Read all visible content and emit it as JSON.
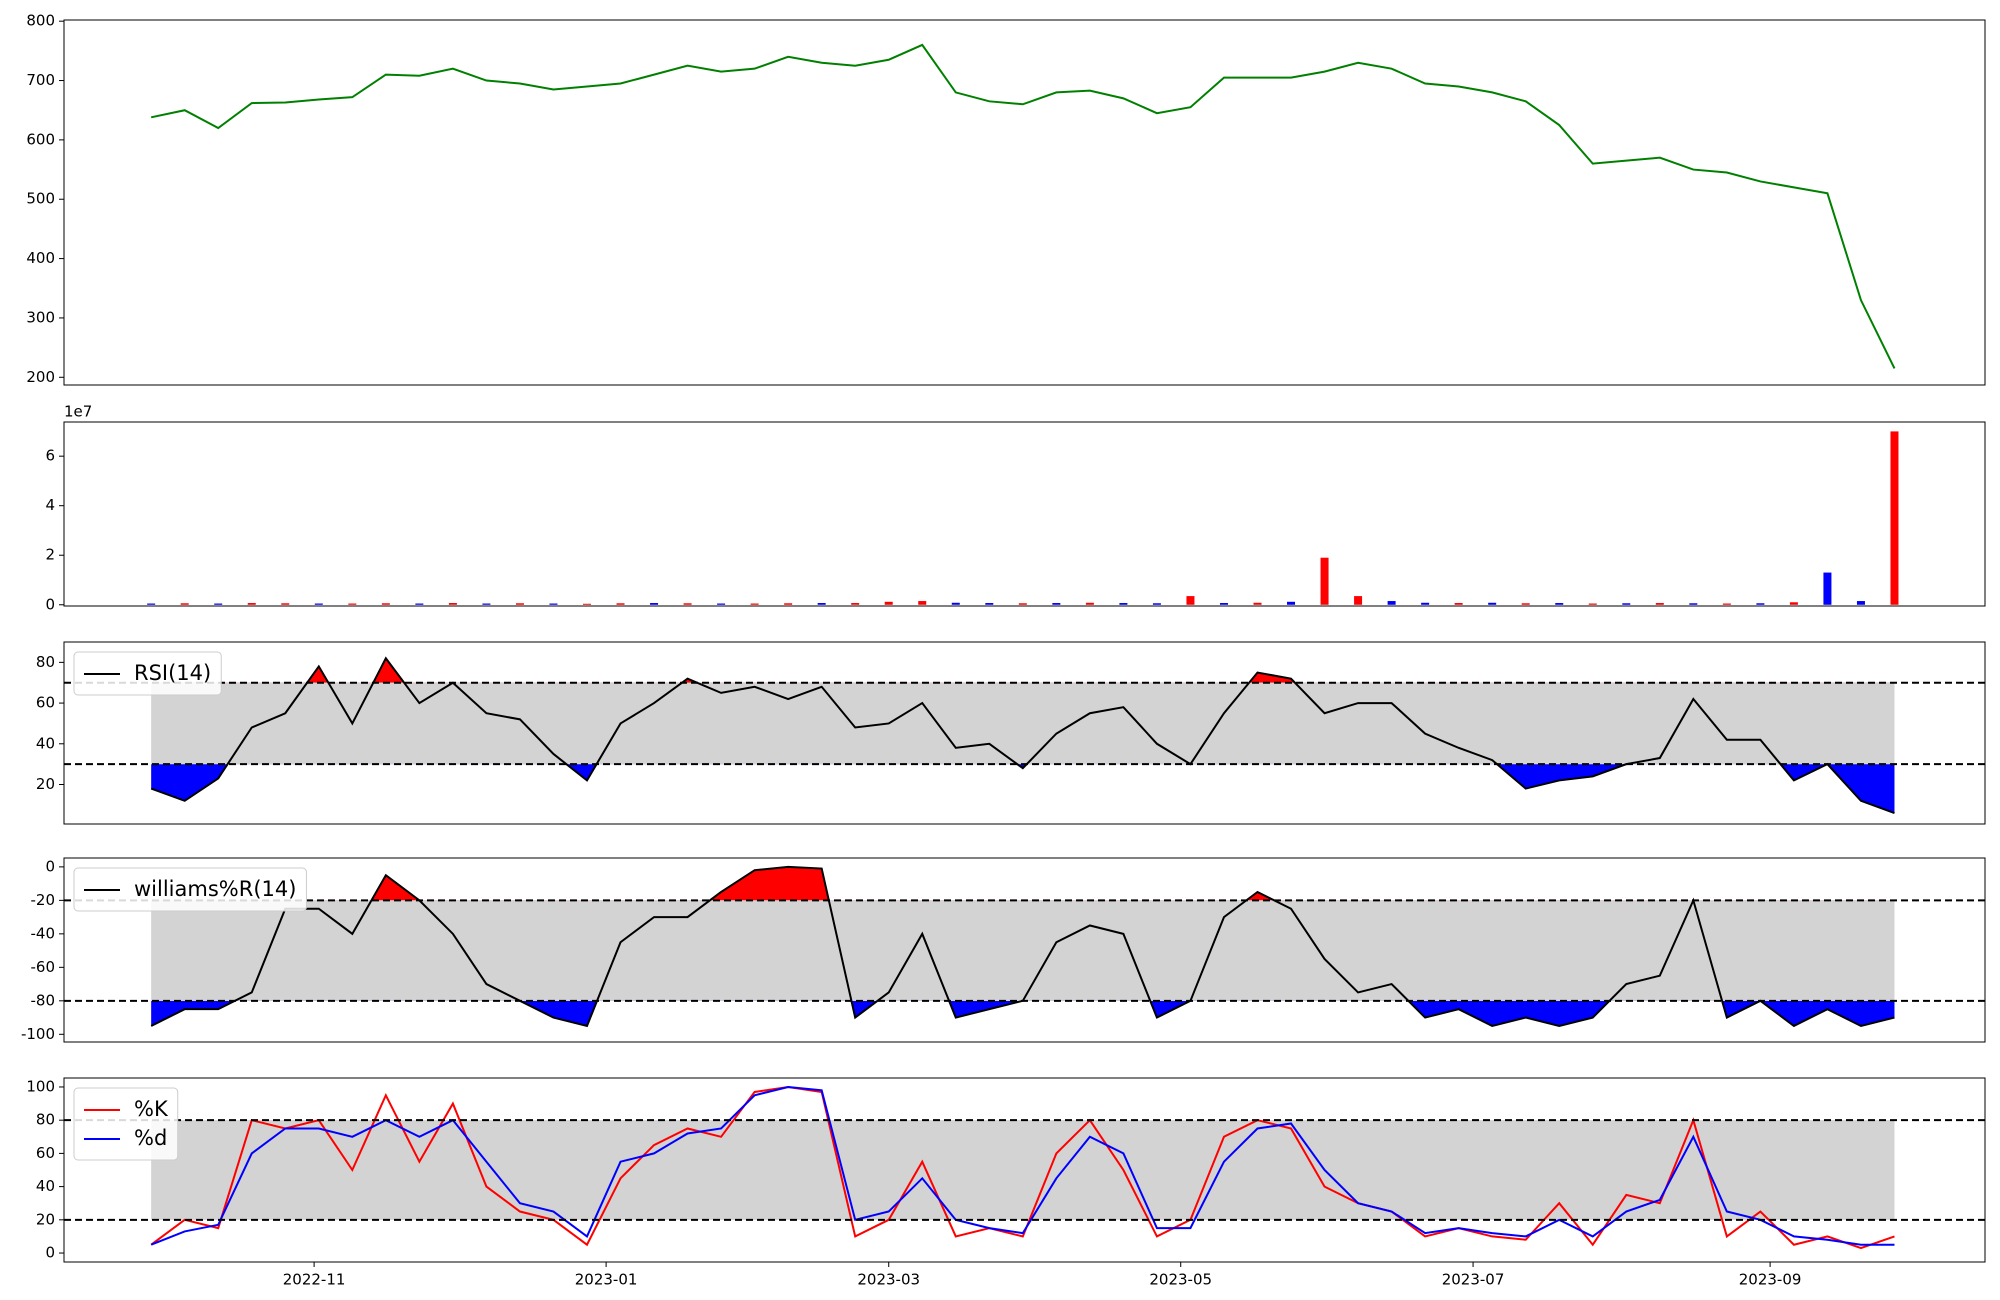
{
  "chart_data": [
    {
      "type": "line",
      "xlim": [
        -2.6,
        54.7
      ],
      "ylim": [
        187,
        802
      ],
      "yticks": [
        200,
        300,
        400,
        500,
        600,
        700,
        800
      ],
      "categories": [
        null,
        null,
        null,
        null,
        null,
        null,
        null,
        null,
        null,
        null,
        null,
        null,
        null,
        null,
        null,
        null,
        null,
        null,
        null,
        null,
        null,
        null,
        null,
        null,
        null,
        null,
        null,
        null,
        null,
        null,
        null,
        null,
        null,
        null,
        null,
        null,
        null,
        null,
        null,
        null,
        null,
        null,
        null,
        null,
        null,
        null,
        null,
        null,
        null,
        null,
        null,
        null,
        null
      ],
      "series": [
        {
          "color": "green",
          "values": [
            638,
            650,
            620,
            662,
            663,
            668,
            672,
            710,
            708,
            720,
            700,
            695,
            685,
            690,
            695,
            710,
            725,
            715,
            720,
            740,
            730,
            725,
            735,
            760,
            680,
            665,
            660,
            680,
            683,
            670,
            645,
            655,
            705,
            705,
            705,
            715,
            730,
            720,
            695,
            690,
            680,
            665,
            625,
            560,
            565,
            570,
            550,
            545,
            530,
            520,
            510,
            330,
            215
          ]
        }
      ]
    },
    {
      "type": "bar",
      "xlim": [
        -2.6,
        54.7
      ],
      "ylim": [
        -0.05,
        7.38
      ],
      "yticks": [
        0,
        2,
        4,
        6
      ],
      "offset_text": "1e7",
      "categories": [
        null,
        null,
        null,
        null,
        null,
        null,
        null,
        null,
        null,
        null,
        null,
        null,
        null,
        null,
        null,
        null,
        null,
        null,
        null,
        null,
        null,
        null,
        null,
        null,
        null,
        null,
        null,
        null,
        null,
        null,
        null,
        null,
        null,
        null,
        null,
        null,
        null,
        null,
        null,
        null,
        null,
        null,
        null,
        null,
        null,
        null,
        null,
        null,
        null,
        null,
        null,
        null,
        null
      ],
      "values": [
        0.05,
        0.06,
        0.05,
        0.07,
        0.06,
        0.05,
        0.05,
        0.06,
        0.05,
        0.07,
        0.05,
        0.06,
        0.05,
        0.04,
        0.06,
        0.07,
        0.06,
        0.05,
        0.05,
        0.06,
        0.07,
        0.07,
        0.12,
        0.15,
        0.08,
        0.07,
        0.06,
        0.07,
        0.08,
        0.07,
        0.06,
        0.35,
        0.07,
        0.08,
        0.12,
        1.9,
        0.35,
        0.15,
        0.08,
        0.07,
        0.08,
        0.06,
        0.07,
        0.05,
        0.06,
        0.07,
        0.06,
        0.05,
        0.06,
        0.1,
        1.3,
        0.15,
        7.0
      ],
      "colors": [
        "blue",
        "red",
        "blue",
        "red",
        "red",
        "blue",
        "red",
        "red",
        "blue",
        "red",
        "blue",
        "red",
        "blue",
        "red",
        "red",
        "blue",
        "red",
        "blue",
        "red",
        "red",
        "blue",
        "red",
        "red",
        "red",
        "blue",
        "blue",
        "red",
        "blue",
        "red",
        "blue",
        "blue",
        "red",
        "blue",
        "red",
        "blue",
        "red",
        "red",
        "blue",
        "blue",
        "red",
        "blue",
        "red",
        "blue",
        "red",
        "blue",
        "red",
        "blue",
        "red",
        "blue",
        "red",
        "blue",
        "blue",
        "red"
      ]
    },
    {
      "type": "line",
      "xlim": [
        -2.6,
        54.7
      ],
      "ylim": [
        0.6,
        90
      ],
      "yticks": [
        20,
        40,
        60,
        80
      ],
      "bands": [
        30,
        70
      ],
      "band_color": "lightgray",
      "fill_above": "red",
      "fill_below": "blue",
      "legend": "upper left",
      "categories": [
        null,
        null,
        null,
        null,
        null,
        null,
        null,
        null,
        null,
        null,
        null,
        null,
        null,
        null,
        null,
        null,
        null,
        null,
        null,
        null,
        null,
        null,
        null,
        null,
        null,
        null,
        null,
        null,
        null,
        null,
        null,
        null,
        null,
        null,
        null,
        null,
        null,
        null,
        null,
        null,
        null,
        null,
        null,
        null,
        null,
        null,
        null,
        null,
        null,
        null,
        null,
        null,
        null
      ],
      "series": [
        {
          "name": "RSI(14)",
          "color": "black",
          "values": [
            18,
            12,
            23,
            48,
            55,
            78,
            50,
            82,
            60,
            70,
            55,
            52,
            35,
            22,
            50,
            60,
            72,
            65,
            68,
            62,
            68,
            48,
            50,
            60,
            38,
            40,
            28,
            45,
            55,
            58,
            40,
            30,
            55,
            75,
            72,
            55,
            60,
            60,
            45,
            38,
            32,
            18,
            22,
            24,
            30,
            33,
            62,
            42,
            42,
            22,
            30,
            12,
            6
          ]
        }
      ]
    },
    {
      "type": "line",
      "xlim": [
        -2.6,
        54.7
      ],
      "ylim": [
        -104.6,
        5.3
      ],
      "yticks": [
        -100,
        -80,
        -60,
        -40,
        -20,
        0
      ],
      "bands": [
        -80,
        -20
      ],
      "band_color": "lightgray",
      "fill_above": "red",
      "fill_below": "blue",
      "legend": "upper left",
      "categories": [
        null,
        null,
        null,
        null,
        null,
        null,
        null,
        null,
        null,
        null,
        null,
        null,
        null,
        null,
        null,
        null,
        null,
        null,
        null,
        null,
        null,
        null,
        null,
        null,
        null,
        null,
        null,
        null,
        null,
        null,
        null,
        null,
        null,
        null,
        null,
        null,
        null,
        null,
        null,
        null,
        null,
        null,
        null,
        null,
        null,
        null,
        null,
        null,
        null,
        null,
        null,
        null,
        null
      ],
      "series": [
        {
          "name": "williams%R(14)",
          "color": "black",
          "values": [
            -95,
            -85,
            -85,
            -75,
            -25,
            -25,
            -40,
            -5,
            -20,
            -40,
            -70,
            -80,
            -90,
            -95,
            -45,
            -30,
            -30,
            -15,
            -2,
            0,
            -1,
            -90,
            -75,
            -40,
            -90,
            -85,
            -80,
            -45,
            -35,
            -40,
            -90,
            -80,
            -30,
            -15,
            -25,
            -55,
            -75,
            -70,
            -90,
            -85,
            -95,
            -90,
            -95,
            -90,
            -70,
            -65,
            -20,
            -90,
            -80,
            -95,
            -85,
            -95,
            -90
          ]
        }
      ]
    },
    {
      "type": "line",
      "xlim": [
        -2.6,
        54.7
      ],
      "ylim": [
        -5.4,
        105.4
      ],
      "yticks": [
        0,
        20,
        40,
        60,
        80,
        100
      ],
      "bands": [
        20,
        80
      ],
      "band_color": "lightgray",
      "legend": "upper left",
      "categories": [
        null,
        null,
        null,
        null,
        null,
        null,
        null,
        null,
        null,
        null,
        null,
        null,
        null,
        null,
        null,
        null,
        null,
        null,
        null,
        null,
        null,
        null,
        null,
        null,
        null,
        null,
        null,
        null,
        null,
        null,
        null,
        null,
        null,
        null,
        null,
        null,
        null,
        null,
        null,
        null,
        null,
        null,
        null,
        null,
        null,
        null,
        null,
        null,
        null,
        null,
        null,
        null,
        null
      ],
      "xticks": [
        {
          "value": 4.86,
          "label": "2022-11"
        },
        {
          "value": 13.57,
          "label": "2023-01"
        },
        {
          "value": 22.0,
          "label": "2023-03"
        },
        {
          "value": 30.71,
          "label": "2023-05"
        },
        {
          "value": 39.43,
          "label": "2023-07"
        },
        {
          "value": 48.29,
          "label": "2023-09"
        }
      ],
      "series": [
        {
          "name": "%K",
          "color": "red",
          "values": [
            5,
            20,
            15,
            80,
            75,
            80,
            50,
            95,
            55,
            90,
            40,
            25,
            20,
            5,
            45,
            65,
            75,
            70,
            97,
            100,
            97,
            10,
            20,
            55,
            10,
            15,
            10,
            60,
            80,
            50,
            10,
            20,
            70,
            80,
            75,
            40,
            30,
            25,
            10,
            15,
            10,
            8,
            30,
            5,
            35,
            30,
            80,
            10,
            25,
            5,
            10,
            3,
            10
          ]
        },
        {
          "name": "%d",
          "color": "blue",
          "values": [
            5,
            13,
            17,
            60,
            75,
            75,
            70,
            80,
            70,
            80,
            55,
            30,
            25,
            10,
            55,
            60,
            72,
            75,
            95,
            100,
            98,
            20,
            25,
            45,
            20,
            15,
            12,
            45,
            70,
            60,
            15,
            15,
            55,
            75,
            78,
            50,
            30,
            25,
            12,
            15,
            12,
            10,
            20,
            10,
            25,
            32,
            70,
            25,
            20,
            10,
            8,
            5,
            5
          ]
        }
      ]
    }
  ]
}
